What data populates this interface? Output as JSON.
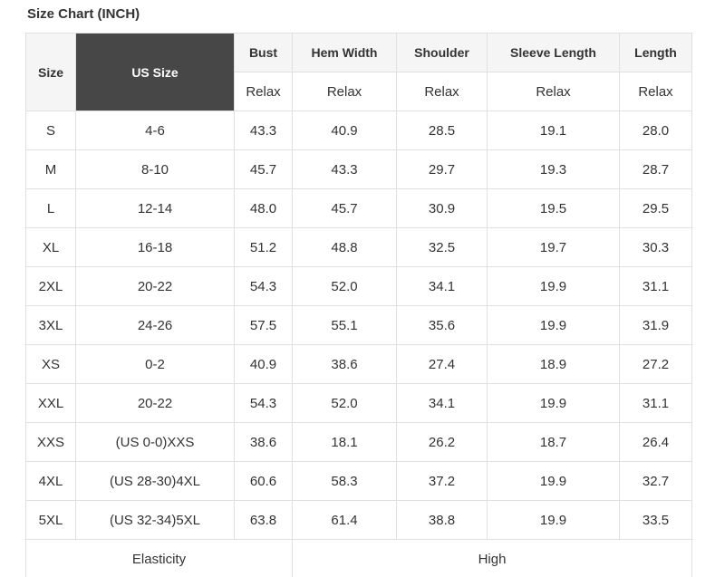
{
  "page": {
    "title": "Size Chart (INCH)"
  },
  "chart_data": {
    "type": "table",
    "title": "Size Chart (INCH)",
    "columns": [
      {
        "label": "Size"
      },
      {
        "label": "US Size"
      },
      {
        "label": "Bust",
        "sub": "Relax"
      },
      {
        "label": "Hem Width",
        "sub": "Relax"
      },
      {
        "label": "Shoulder",
        "sub": "Relax"
      },
      {
        "label": "Sleeve Length",
        "sub": "Relax"
      },
      {
        "label": "Length",
        "sub": "Relax"
      }
    ],
    "rows": [
      [
        "S",
        "4-6",
        "43.3",
        "40.9",
        "28.5",
        "19.1",
        "28.0"
      ],
      [
        "M",
        "8-10",
        "45.7",
        "43.3",
        "29.7",
        "19.3",
        "28.7"
      ],
      [
        "L",
        "12-14",
        "48.0",
        "45.7",
        "30.9",
        "19.5",
        "29.5"
      ],
      [
        "XL",
        "16-18",
        "51.2",
        "48.8",
        "32.5",
        "19.7",
        "30.3"
      ],
      [
        "2XL",
        "20-22",
        "54.3",
        "52.0",
        "34.1",
        "19.9",
        "31.1"
      ],
      [
        "3XL",
        "24-26",
        "57.5",
        "55.1",
        "35.6",
        "19.9",
        "31.9"
      ],
      [
        "XS",
        "0-2",
        "40.9",
        "38.6",
        "27.4",
        "18.9",
        "27.2"
      ],
      [
        "XXL",
        "20-22",
        "54.3",
        "52.0",
        "34.1",
        "19.9",
        "31.1"
      ],
      [
        "XXS",
        "(US 0-0)XXS",
        "38.6",
        "18.1",
        "26.2",
        "18.7",
        "26.4"
      ],
      [
        "4XL",
        "(US 28-30)4XL",
        "60.6",
        "58.3",
        "37.2",
        "19.9",
        "32.7"
      ],
      [
        "5XL",
        "(US 32-34)5XL",
        "63.8",
        "61.4",
        "38.8",
        "19.9",
        "33.5"
      ]
    ],
    "footer": {
      "label": "Elasticity",
      "value": "High"
    }
  },
  "colors": {
    "header_background": "#f5f5f5",
    "us_size_header_background": "#474747",
    "us_size_header_text": "#ffffff",
    "border": "#e0e0e0",
    "text": "#333333"
  }
}
